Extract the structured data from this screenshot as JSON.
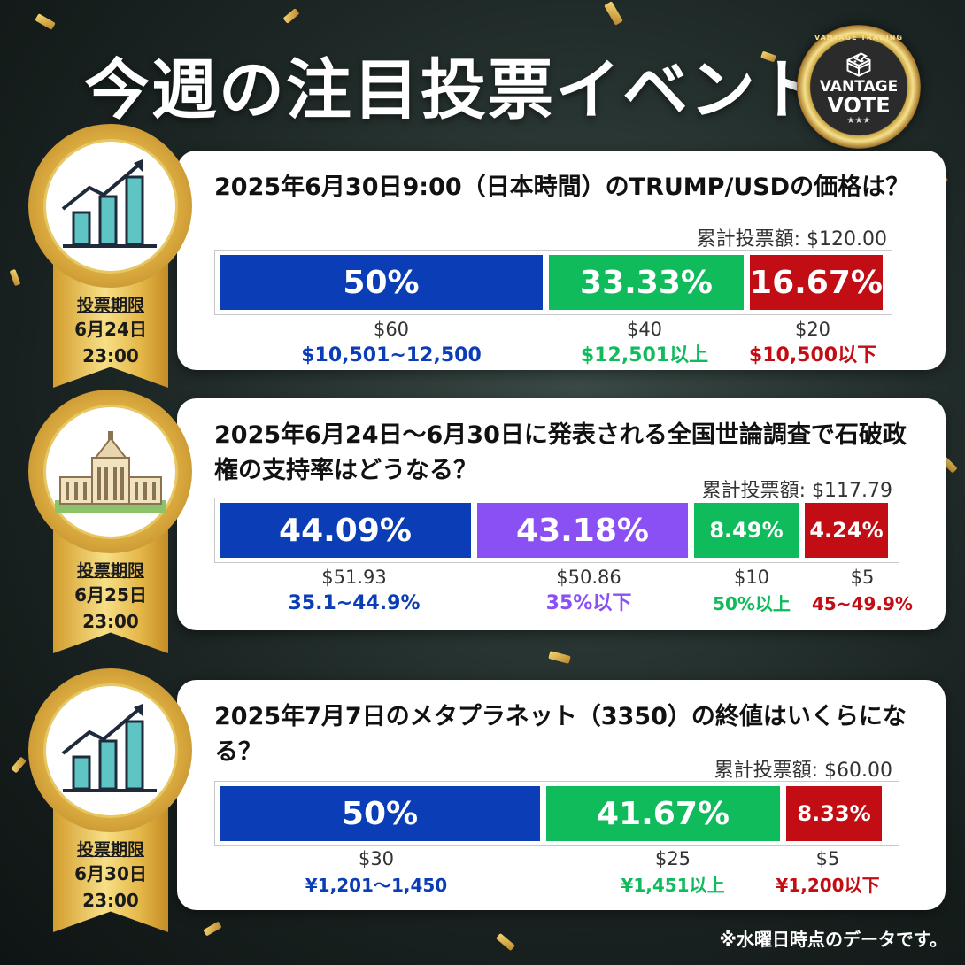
{
  "title": "今週の注目投票イベント",
  "logo": {
    "ring_text": "VANTAGE TRADING",
    "line1": "VANTAGE",
    "line2": "VOTE",
    "stars": "★★★",
    "icon": "ballot-box-icon"
  },
  "colors": {
    "blue": "#0b3db7",
    "green": "#10bb5c",
    "red": "#c10d13",
    "purple": "#8a50f4",
    "gold": "#d9a93e"
  },
  "events": [
    {
      "icon": "bar-chart-growth-icon",
      "deadline_label": "投票期限",
      "deadline_date": "6月24日",
      "deadline_time": "23:00",
      "question": "2025年6月30日9:00（日本時間）のTRUMP/USDの価格は？",
      "total": "累計投票額: $120.00",
      "options": [
        {
          "pct": "50%",
          "amount": "$60",
          "label": "$10,501~12,500",
          "color": "blue",
          "share": 50
        },
        {
          "pct": "33.33%",
          "amount": "$40",
          "label": "$12,501以上",
          "color": "green",
          "share": 33.33
        },
        {
          "pct": "16.67%",
          "amount": "$20",
          "label": "$10,500以下",
          "color": "red",
          "share": 16.67
        }
      ]
    },
    {
      "icon": "parliament-building-icon",
      "deadline_label": "投票期限",
      "deadline_date": "6月25日",
      "deadline_time": "23:00",
      "question": "2025年6月24日～6月30日に発表される全国世論調査で石破政権の支持率はどうなる？",
      "total": "累計投票額: $117.79",
      "options": [
        {
          "pct": "44.09%",
          "amount": "$51.93",
          "label": "35.1~44.9%",
          "color": "blue",
          "share": 44.09
        },
        {
          "pct": "43.18%",
          "amount": "$50.86",
          "label": "35%以下",
          "color": "purple",
          "share": 43.18
        },
        {
          "pct": "8.49%",
          "amount": "$10",
          "label": "50%以上",
          "color": "green",
          "share": 8.49
        },
        {
          "pct": "4.24%",
          "amount": "$5",
          "label": "45~49.9%",
          "color": "red",
          "share": 4.24
        }
      ]
    },
    {
      "icon": "bar-chart-growth-icon",
      "deadline_label": "投票期限",
      "deadline_date": "6月30日",
      "deadline_time": "23:00",
      "question": "2025年7月7日のメタプラネット（3350）の終値はいくらになる？",
      "total": "累計投票額: $60.00",
      "options": [
        {
          "pct": "50%",
          "amount": "$30",
          "label": "¥1,201～1,450",
          "color": "blue",
          "share": 50
        },
        {
          "pct": "41.67%",
          "amount": "$25",
          "label": "¥1,451以上",
          "color": "green",
          "share": 41.67
        },
        {
          "pct": "8.33%",
          "amount": "$5",
          "label": "¥1,200以下",
          "color": "red",
          "share": 8.33
        }
      ]
    }
  ],
  "footnote": "※水曜日時点のデータです。"
}
